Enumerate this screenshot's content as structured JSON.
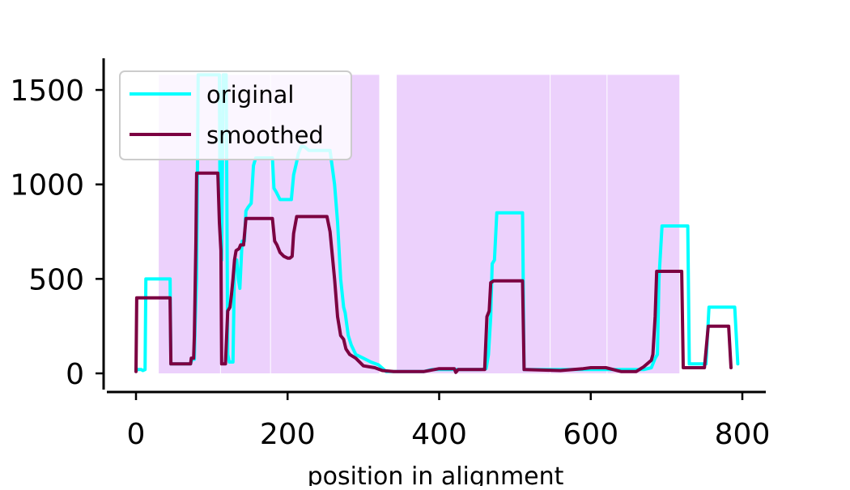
{
  "chart_data": {
    "type": "line",
    "title": "",
    "xlabel": "position in alignment",
    "ylabel": "",
    "xlim": [
      -20,
      800
    ],
    "ylim": [
      -80,
      1660
    ],
    "xticks": [
      0,
      200,
      400,
      600,
      800
    ],
    "yticks": [
      0,
      500,
      1000,
      1500
    ],
    "legend": {
      "position": "top-left"
    },
    "shaded_regions": {
      "color": "#ecd1fc",
      "ymax": 1580,
      "spans": [
        [
          30,
          112
        ],
        [
          112,
          178
        ],
        [
          178,
          322
        ],
        [
          344,
          547
        ],
        [
          547,
          622
        ],
        [
          622,
          718
        ]
      ]
    },
    "series": [
      {
        "name": "original",
        "color": "#00ffff",
        "points": [
          [
            0,
            20
          ],
          [
            7,
            20
          ],
          [
            9,
            15
          ],
          [
            12,
            20
          ],
          [
            13,
            500
          ],
          [
            45,
            500
          ],
          [
            46,
            50
          ],
          [
            72,
            50
          ],
          [
            74,
            75
          ],
          [
            77,
            75
          ],
          [
            78,
            250
          ],
          [
            80,
            500
          ],
          [
            82,
            1580
          ],
          [
            95,
            1580
          ],
          [
            110,
            1580
          ],
          [
            111,
            800
          ],
          [
            113,
            600
          ],
          [
            115,
            1580
          ],
          [
            119,
            1580
          ],
          [
            120,
            800
          ],
          [
            121,
            100
          ],
          [
            123,
            60
          ],
          [
            126,
            60
          ],
          [
            128,
            60
          ],
          [
            130,
            580
          ],
          [
            133,
            600
          ],
          [
            135,
            500
          ],
          [
            137,
            450
          ],
          [
            140,
            700
          ],
          [
            143,
            700
          ],
          [
            145,
            860
          ],
          [
            148,
            880
          ],
          [
            152,
            900
          ],
          [
            155,
            1100
          ],
          [
            158,
            1140
          ],
          [
            180,
            1140
          ],
          [
            182,
            980
          ],
          [
            185,
            960
          ],
          [
            190,
            920
          ],
          [
            195,
            920
          ],
          [
            200,
            920
          ],
          [
            205,
            920
          ],
          [
            208,
            1050
          ],
          [
            212,
            1120
          ],
          [
            214,
            1160
          ],
          [
            218,
            1200
          ],
          [
            222,
            1200
          ],
          [
            228,
            1180
          ],
          [
            240,
            1180
          ],
          [
            256,
            1180
          ],
          [
            262,
            1000
          ],
          [
            266,
            800
          ],
          [
            270,
            500
          ],
          [
            274,
            350
          ],
          [
            276,
            320
          ],
          [
            280,
            200
          ],
          [
            284,
            150
          ],
          [
            290,
            100
          ],
          [
            300,
            80
          ],
          [
            310,
            60
          ],
          [
            320,
            45
          ],
          [
            330,
            10
          ],
          [
            360,
            10
          ],
          [
            380,
            10
          ],
          [
            390,
            20
          ],
          [
            400,
            20
          ],
          [
            420,
            20
          ],
          [
            440,
            20
          ],
          [
            455,
            20
          ],
          [
            462,
            25
          ],
          [
            465,
            100
          ],
          [
            468,
            300
          ],
          [
            470,
            580
          ],
          [
            473,
            600
          ],
          [
            476,
            850
          ],
          [
            510,
            850
          ],
          [
            512,
            20
          ],
          [
            560,
            20
          ],
          [
            600,
            20
          ],
          [
            650,
            20
          ],
          [
            670,
            20
          ],
          [
            680,
            30
          ],
          [
            685,
            80
          ],
          [
            688,
            100
          ],
          [
            690,
            500
          ],
          [
            694,
            780
          ],
          [
            728,
            780
          ],
          [
            730,
            50
          ],
          [
            752,
            50
          ],
          [
            756,
            350
          ],
          [
            790,
            350
          ],
          [
            794,
            50
          ]
        ]
      },
      {
        "name": "smoothed",
        "color": "#7b0041",
        "points": [
          [
            0,
            10
          ],
          [
            1,
            400
          ],
          [
            5,
            400
          ],
          [
            10,
            400
          ],
          [
            45,
            400
          ],
          [
            46,
            50
          ],
          [
            72,
            50
          ],
          [
            73,
            80
          ],
          [
            76,
            80
          ],
          [
            77,
            200
          ],
          [
            79,
            700
          ],
          [
            80,
            1060
          ],
          [
            108,
            1060
          ],
          [
            110,
            800
          ],
          [
            112,
            650
          ],
          [
            113,
            50
          ],
          [
            118,
            50
          ],
          [
            121,
            330
          ],
          [
            124,
            350
          ],
          [
            126,
            420
          ],
          [
            128,
            500
          ],
          [
            130,
            600
          ],
          [
            132,
            650
          ],
          [
            136,
            660
          ],
          [
            138,
            680
          ],
          [
            142,
            680
          ],
          [
            145,
            820
          ],
          [
            150,
            820
          ],
          [
            180,
            820
          ],
          [
            183,
            700
          ],
          [
            186,
            680
          ],
          [
            190,
            640
          ],
          [
            195,
            620
          ],
          [
            200,
            610
          ],
          [
            203,
            610
          ],
          [
            206,
            620
          ],
          [
            208,
            740
          ],
          [
            212,
            830
          ],
          [
            252,
            830
          ],
          [
            256,
            750
          ],
          [
            262,
            500
          ],
          [
            266,
            300
          ],
          [
            270,
            200
          ],
          [
            274,
            180
          ],
          [
            277,
            130
          ],
          [
            282,
            100
          ],
          [
            290,
            80
          ],
          [
            300,
            40
          ],
          [
            315,
            30
          ],
          [
            325,
            15
          ],
          [
            340,
            10
          ],
          [
            380,
            10
          ],
          [
            400,
            25
          ],
          [
            420,
            25
          ],
          [
            422,
            5
          ],
          [
            425,
            20
          ],
          [
            450,
            20
          ],
          [
            460,
            20
          ],
          [
            463,
            300
          ],
          [
            466,
            330
          ],
          [
            468,
            480
          ],
          [
            472,
            490
          ],
          [
            475,
            490
          ],
          [
            510,
            490
          ],
          [
            512,
            20
          ],
          [
            560,
            15
          ],
          [
            590,
            25
          ],
          [
            600,
            30
          ],
          [
            620,
            30
          ],
          [
            640,
            10
          ],
          [
            660,
            10
          ],
          [
            670,
            35
          ],
          [
            680,
            70
          ],
          [
            682,
            100
          ],
          [
            685,
            300
          ],
          [
            687,
            540
          ],
          [
            720,
            540
          ],
          [
            722,
            30
          ],
          [
            750,
            30
          ],
          [
            755,
            250
          ],
          [
            782,
            250
          ],
          [
            785,
            30
          ]
        ]
      }
    ]
  }
}
